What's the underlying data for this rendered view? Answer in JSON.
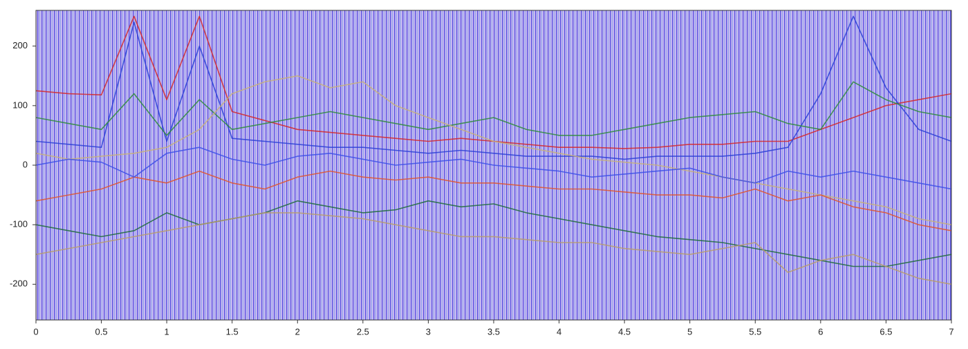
{
  "chart_data": {
    "type": "line",
    "x": [
      0,
      0.25,
      0.5,
      0.75,
      1,
      1.25,
      1.5,
      1.75,
      2,
      2.25,
      2.5,
      2.75,
      3,
      3.25,
      3.5,
      3.75,
      4,
      4.25,
      4.5,
      4.75,
      5,
      5.25,
      5.5,
      5.75,
      6,
      6.25,
      6.5,
      6.75,
      7
    ],
    "series": [
      {
        "color": "#d62728",
        "values": [
          125,
          120,
          118,
          250,
          110,
          250,
          90,
          75,
          60,
          55,
          50,
          45,
          40,
          45,
          40,
          35,
          30,
          30,
          28,
          30,
          35,
          35,
          40,
          40,
          60,
          80,
          100,
          110,
          120
        ]
      },
      {
        "color": "#2a3fd6",
        "values": [
          40,
          35,
          30,
          240,
          40,
          200,
          45,
          40,
          35,
          30,
          30,
          25,
          20,
          25,
          20,
          15,
          15,
          15,
          10,
          15,
          15,
          15,
          20,
          30,
          120,
          250,
          130,
          60,
          40
        ]
      },
      {
        "color": "#2e8b3a",
        "values": [
          80,
          70,
          60,
          120,
          50,
          110,
          60,
          70,
          80,
          90,
          80,
          70,
          60,
          70,
          80,
          60,
          50,
          50,
          60,
          70,
          80,
          85,
          90,
          70,
          60,
          140,
          110,
          90,
          80
        ]
      },
      {
        "color": "#c8b078",
        "values": [
          20,
          10,
          15,
          20,
          30,
          60,
          120,
          140,
          150,
          130,
          140,
          100,
          80,
          60,
          40,
          30,
          20,
          10,
          5,
          0,
          -10,
          -20,
          -30,
          -40,
          -50,
          -60,
          -70,
          -90,
          -100
        ]
      },
      {
        "color": "#e0532a",
        "values": [
          -60,
          -50,
          -40,
          -20,
          -30,
          -10,
          -30,
          -40,
          -20,
          -10,
          -20,
          -25,
          -20,
          -30,
          -30,
          -35,
          -40,
          -40,
          -45,
          -50,
          -50,
          -55,
          -40,
          -60,
          -50,
          -70,
          -80,
          -100,
          -110
        ]
      },
      {
        "color": "#1f6b3a",
        "values": [
          -100,
          -110,
          -120,
          -110,
          -80,
          -100,
          -90,
          -80,
          -60,
          -70,
          -80,
          -75,
          -60,
          -70,
          -65,
          -80,
          -90,
          -100,
          -110,
          -120,
          -125,
          -130,
          -140,
          -150,
          -160,
          -170,
          -170,
          -160,
          -150
        ]
      },
      {
        "color": "#b89c6a",
        "values": [
          -150,
          -140,
          -130,
          -120,
          -110,
          -100,
          -90,
          -80,
          -80,
          -85,
          -90,
          -100,
          -110,
          -120,
          -120,
          -125,
          -130,
          -130,
          -140,
          -145,
          -150,
          -140,
          -130,
          -180,
          -160,
          -150,
          -170,
          -190,
          -200
        ]
      },
      {
        "color": "#3b4fe8",
        "values": [
          0,
          10,
          5,
          -20,
          20,
          30,
          10,
          0,
          15,
          20,
          10,
          0,
          5,
          10,
          0,
          -5,
          -10,
          -20,
          -15,
          -10,
          -5,
          -20,
          -30,
          -10,
          -20,
          -10,
          -20,
          -30,
          -40
        ]
      }
    ],
    "xlim": [
      0,
      7
    ],
    "ylim": [
      -260,
      260
    ],
    "xticks": [
      0,
      0.5,
      1,
      1.5,
      2,
      2.5,
      3,
      3.5,
      4,
      4.5,
      5,
      5.5,
      6,
      6.5,
      7
    ],
    "yticks": [
      -200,
      -100,
      0,
      100,
      200
    ]
  }
}
